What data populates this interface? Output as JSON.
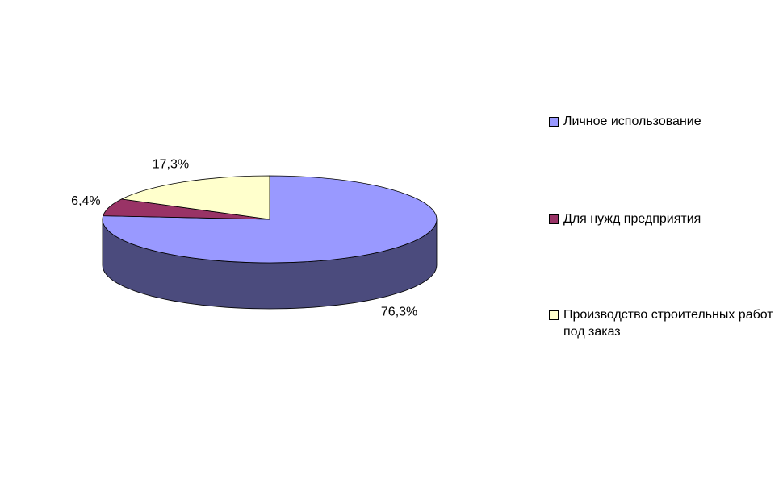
{
  "chart_data": {
    "type": "pie3d",
    "categories": [
      "Личное использование",
      "Для нужд предприятия",
      "Производство строительных работ под заказ"
    ],
    "values": [
      76.3,
      6.4,
      17.3
    ],
    "value_labels": [
      "76,3%",
      "6,4%",
      "17,3%"
    ],
    "colors": [
      "#9999ff",
      "#993366",
      "#ffffcc"
    ],
    "legend": "right"
  }
}
